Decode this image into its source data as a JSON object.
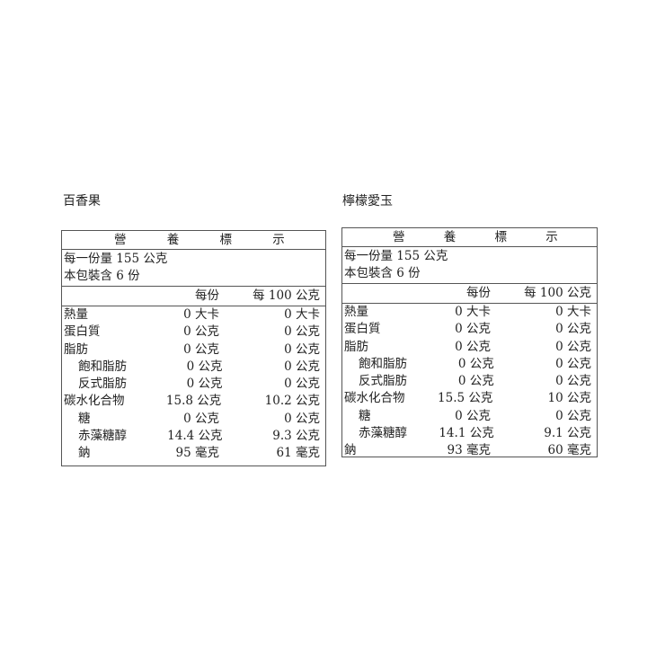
{
  "products": [
    {
      "name": "百香果",
      "header": [
        "營",
        "養",
        "標",
        "示"
      ],
      "serving_size": "每一份量 155 公克",
      "servings": "本包裝含 6 份",
      "col_per_serving": "每份",
      "col_per_100g": "每 100 公克",
      "rows": [
        {
          "name": "熱量",
          "per_serving": "0 大卡",
          "per_100g": "0 大卡",
          "indent": false
        },
        {
          "name": "蛋白質",
          "per_serving": "0 公克",
          "per_100g": "0 公克",
          "indent": false
        },
        {
          "name": "脂肪",
          "per_serving": "0 公克",
          "per_100g": "0 公克",
          "indent": false
        },
        {
          "name": "飽和脂肪",
          "per_serving": "0 公克",
          "per_100g": "0 公克",
          "indent": true
        },
        {
          "name": "反式脂肪",
          "per_serving": "0 公克",
          "per_100g": "0 公克",
          "indent": true
        },
        {
          "name": "碳水化合物",
          "per_serving": "15.8 公克",
          "per_100g": "10.2 公克",
          "indent": false
        },
        {
          "name": "糖",
          "per_serving": "0 公克",
          "per_100g": "0 公克",
          "indent": true
        },
        {
          "name": "赤藻糖醇",
          "per_serving": "14.4 公克",
          "per_100g": "9.3 公克",
          "indent": true
        },
        {
          "name": "鈉",
          "per_serving": "95 毫克",
          "per_100g": "61 毫克",
          "indent": true
        }
      ]
    },
    {
      "name": "檸檬愛玉",
      "header": [
        "營",
        "養",
        "標",
        "示"
      ],
      "serving_size": "每一份量 155 公克",
      "servings": "本包裝含 6 份",
      "col_per_serving": "每份",
      "col_per_100g": "每 100 公克",
      "rows": [
        {
          "name": "熱量",
          "per_serving": "0 大卡",
          "per_100g": "0 大卡",
          "indent": false
        },
        {
          "name": "蛋白質",
          "per_serving": "0 公克",
          "per_100g": "0 公克",
          "indent": false
        },
        {
          "name": "脂肪",
          "per_serving": "0 公克",
          "per_100g": "0 公克",
          "indent": false
        },
        {
          "name": "飽和脂肪",
          "per_serving": "0 公克",
          "per_100g": "0 公克",
          "indent": true
        },
        {
          "name": "反式脂肪",
          "per_serving": "0 公克",
          "per_100g": "0 公克",
          "indent": true
        },
        {
          "name": "碳水化合物",
          "per_serving": "15.5 公克",
          "per_100g": "10 公克",
          "indent": false
        },
        {
          "name": "糖",
          "per_serving": "0 公克",
          "per_100g": "0 公克",
          "indent": true
        },
        {
          "name": "赤藻糖醇",
          "per_serving": "14.1 公克",
          "per_100g": "9.1 公克",
          "indent": true
        },
        {
          "name": "鈉",
          "per_serving": "93 毫克",
          "per_100g": "60 毫克",
          "indent": false
        }
      ]
    }
  ]
}
